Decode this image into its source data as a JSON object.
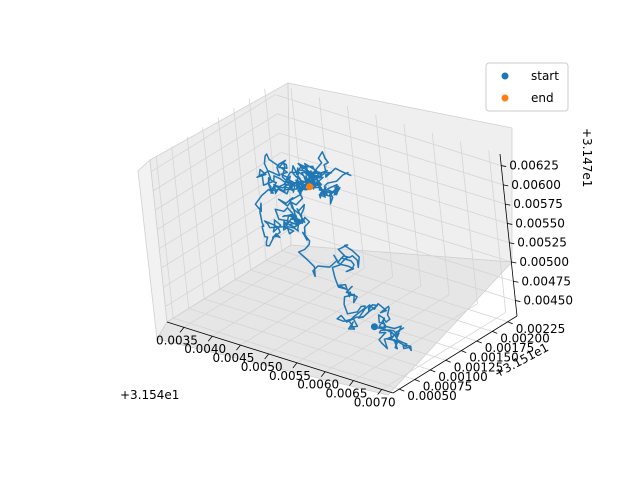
{
  "chart_data": {
    "type": "line3d",
    "x_ticks": [
      "0.0035",
      "0.0040",
      "0.0045",
      "0.0050",
      "0.0055",
      "0.0060",
      "0.0065",
      "0.0070"
    ],
    "y_ticks": [
      "0.00050",
      "0.00075",
      "0.00100",
      "0.00125",
      "0.00150",
      "0.00175",
      "0.00200",
      "0.00225"
    ],
    "z_ticks": [
      "0.00450",
      "0.00475",
      "0.00500",
      "0.00525",
      "0.00550",
      "0.00575",
      "0.00600",
      "0.00625"
    ],
    "x_offset": "+3.154e1",
    "y_offset": "+3.151e1",
    "z_offset": "+3.147e1",
    "grid": true,
    "legend_position": "top-right",
    "series": [
      {
        "name": "start",
        "color": "#1f77b4",
        "marker": "dot"
      },
      {
        "name": "end",
        "color": "#ff7f0e",
        "marker": "dot"
      }
    ],
    "trajectory_color": "#1f77b4",
    "start_point": {
      "x": 0.00596,
      "y": 0.00125,
      "z": 0.00445
    },
    "end_point": {
      "x": 0.00468,
      "y": 0.00155,
      "z": 0.00582
    }
  }
}
